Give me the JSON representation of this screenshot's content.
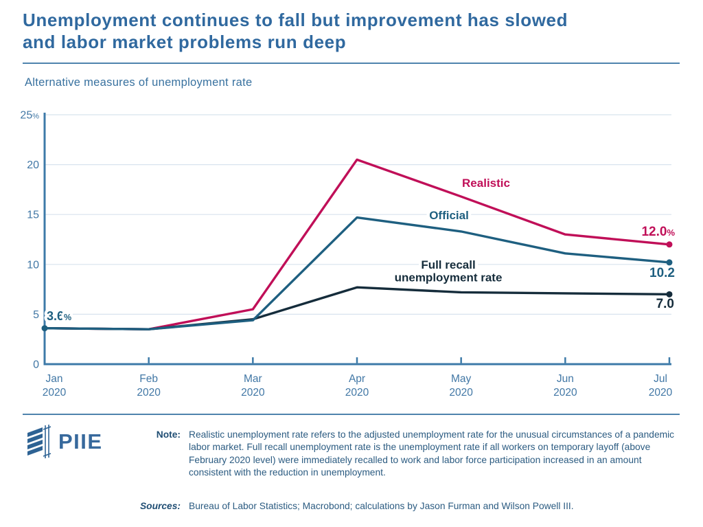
{
  "header": {
    "title_lines": [
      "Unemployment continues to fall but improvement has slowed",
      "and labor market problems run deep"
    ],
    "subtitle": "Alternative measures of unemployment rate"
  },
  "chart_data": {
    "type": "line",
    "title": "Alternative measures of unemployment rate",
    "months": [
      "Jan",
      "Feb",
      "Mar",
      "Apr",
      "May",
      "Jun",
      "Jul"
    ],
    "year": "2020",
    "ylim": [
      0,
      25
    ],
    "y_ticks": [
      0,
      5,
      10,
      15,
      20,
      25
    ],
    "y_unit": "%",
    "grid": true,
    "legend_position": "inline",
    "axis_color": "#3d7aa8",
    "axis_label_color": "#4177a5",
    "grid_color": "#d8e3ee",
    "series": [
      {
        "id": "realistic",
        "label_lines": [
          "Realistic"
        ],
        "color": "#c00f58",
        "values": [
          3.6,
          3.5,
          5.5,
          20.5,
          16.8,
          13.0,
          12.0
        ],
        "end_label": "12.0",
        "end_suffix": "%"
      },
      {
        "id": "official",
        "label_lines": [
          "Official"
        ],
        "color": "#1e5f80",
        "values": [
          3.6,
          3.5,
          4.4,
          14.7,
          13.3,
          11.1,
          10.2
        ],
        "end_label": "10.2",
        "end_suffix": ""
      },
      {
        "id": "full-recall",
        "label_lines": [
          "Full recall",
          "unemployment rate"
        ],
        "color": "#152c3b",
        "values": [
          3.6,
          3.5,
          4.5,
          7.7,
          7.2,
          7.1,
          7.0
        ],
        "end_label": "7.0",
        "end_suffix": ""
      }
    ],
    "start_label": {
      "text": "3.6",
      "suffix": "%"
    }
  },
  "footer": {
    "logo_text": "PIIE",
    "note_label": "Note:",
    "note_text": "Realistic unemployment rate refers to the adjusted unemployment rate for the unusual circumstances of a pandemic labor market. Full recall unemployment rate is the unemployment rate if all workers on temporary layoff (above February 2020 level) were immediately recalled to work and labor force participation increased in an amount consistent with the reduction in unemployment.",
    "sources_label": "Sources:",
    "sources_text": "Bureau of Labor Statistics; Macrobond; calculations by Jason Furman and Wilson Powell III."
  }
}
